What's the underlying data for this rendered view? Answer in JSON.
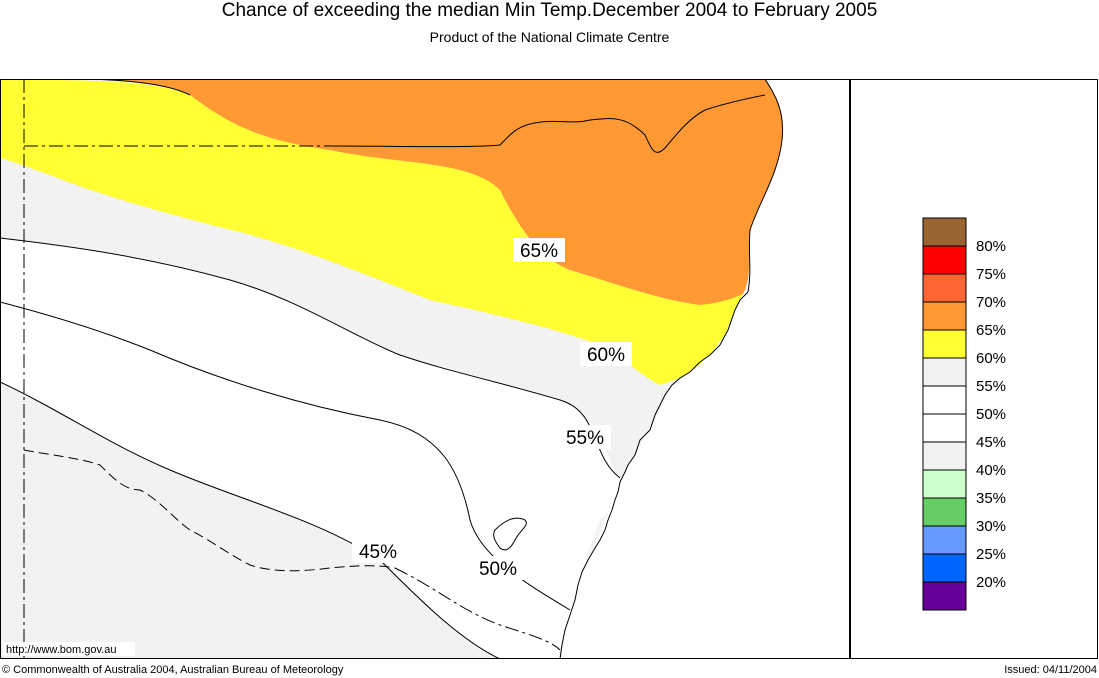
{
  "header": {
    "title": "Chance of exceeding the median Min Temp.December 2004 to February 2005",
    "subtitle": "Product of the National Climate Centre"
  },
  "map": {
    "url_label": "http://www.bom.gov.au",
    "contour_labels": [
      "65%",
      "60%",
      "55%",
      "50%",
      "45%"
    ],
    "colors": {
      "band_65_70": "#ff9933",
      "band_60_65": "#ffff33",
      "band_55_60": "#f2f2f2",
      "band_45_55": "#ffffff",
      "band_40_45": "#f2f2f2"
    }
  },
  "legend": {
    "items": [
      {
        "label": "80%",
        "color": "#996633"
      },
      {
        "label": "75%",
        "color": "#ff0000"
      },
      {
        "label": "70%",
        "color": "#ff6633"
      },
      {
        "label": "65%",
        "color": "#ff9933"
      },
      {
        "label": "60%",
        "color": "#ffff33"
      },
      {
        "label": "55%",
        "color": "#f2f2f2"
      },
      {
        "label": "50%",
        "color": "#ffffff"
      },
      {
        "label": "45%",
        "color": "#ffffff"
      },
      {
        "label": "40%",
        "color": "#f2f2f2"
      },
      {
        "label": "35%",
        "color": "#ccffcc"
      },
      {
        "label": "30%",
        "color": "#66cc66"
      },
      {
        "label": "25%",
        "color": "#6699ff"
      },
      {
        "label": "20%",
        "color": "#0066ff"
      },
      {
        "label": "",
        "color": "#660099"
      }
    ]
  },
  "footer": {
    "copyright": "© Commonwealth of Australia 2004, Australian Bureau of Meteorology",
    "issued": "Issued: 04/11/2004"
  }
}
